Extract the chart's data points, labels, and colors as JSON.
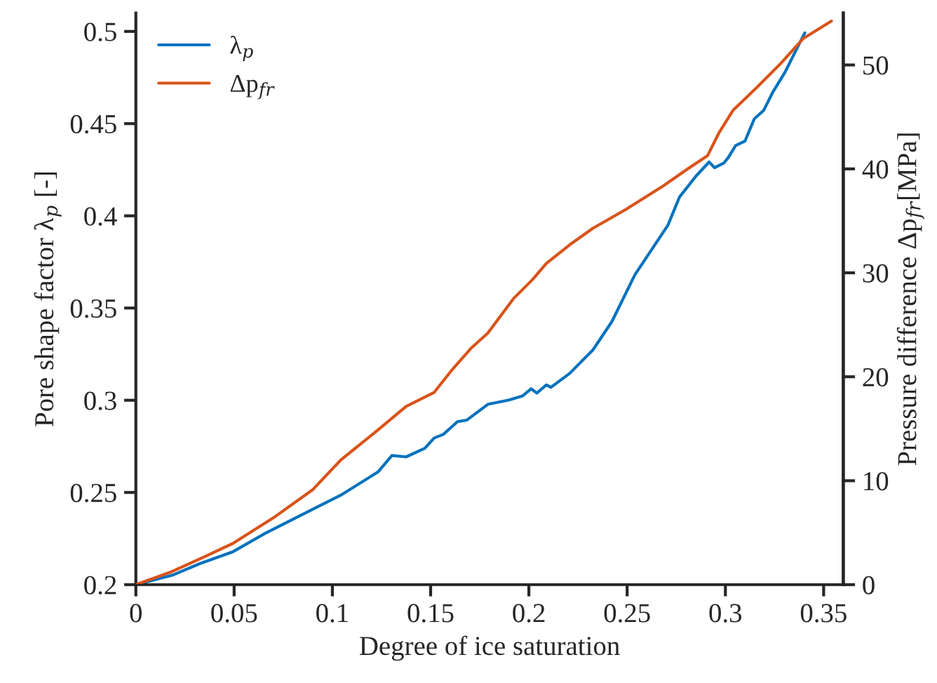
{
  "chart_data": {
    "type": "line",
    "xlabel": "Degree of ice saturation",
    "ylabel": "Pore shape factor λ$_{p}$ [-]",
    "y2label": "Pressure difference Δp$_{fr}$[MPa]",
    "xlim": [
      0,
      0.36
    ],
    "xticks": [
      0,
      0.05,
      0.1,
      0.15,
      0.2,
      0.25,
      0.3,
      0.35
    ],
    "ylim": [
      0.2,
      0.51
    ],
    "yticks": [
      0.2,
      0.25,
      0.3,
      0.35,
      0.4,
      0.45,
      0.5
    ],
    "y2lim": [
      0,
      55
    ],
    "y2ticks": [
      0,
      10,
      20,
      30,
      40,
      50
    ],
    "grid": false,
    "legend": "top left",
    "line_style": "solid",
    "marker": "none",
    "series": [
      {
        "name": "λ$_{p}$",
        "color": "#0072bd",
        "x": [
          0,
          0.0185,
          0.0328,
          0.0495,
          0.0661,
          0.0899,
          0.1041,
          0.1232,
          0.1303,
          0.1375,
          0.147,
          0.1518,
          0.1565,
          0.1637,
          0.1684,
          0.1791,
          0.1898,
          0.1969,
          0.2012,
          0.2041,
          0.2089,
          0.2112,
          0.2208,
          0.2326,
          0.2422,
          0.254,
          0.2707,
          0.2766,
          0.285,
          0.2917,
          0.2945,
          0.2993,
          0.3016,
          0.3052,
          0.31,
          0.3147,
          0.3195,
          0.3243,
          0.3302,
          0.335,
          0.3404
        ],
        "values": [
          0.2,
          0.2051,
          0.2115,
          0.2179,
          0.228,
          0.2408,
          0.2484,
          0.2611,
          0.27,
          0.2693,
          0.2739,
          0.2795,
          0.2815,
          0.2884,
          0.2892,
          0.2978,
          0.3001,
          0.3024,
          0.3062,
          0.3039,
          0.3083,
          0.307,
          0.3146,
          0.3273,
          0.3426,
          0.3681,
          0.3948,
          0.4101,
          0.4215,
          0.4292,
          0.4261,
          0.4287,
          0.4318,
          0.4381,
          0.4406,
          0.4526,
          0.4572,
          0.4674,
          0.4776,
          0.4878,
          0.4992
        ]
      },
      {
        "name": "Δp$_{fr}$",
        "color": "#d95319",
        "axis": "y2",
        "x": [
          0,
          0.0185,
          0.0352,
          0.0495,
          0.0709,
          0.0899,
          0.1041,
          0.1232,
          0.1375,
          0.1518,
          0.1613,
          0.1708,
          0.1791,
          0.1922,
          0.2017,
          0.2089,
          0.2208,
          0.2326,
          0.2493,
          0.2683,
          0.2802,
          0.2909,
          0.2969,
          0.304,
          0.3159,
          0.3278,
          0.3397,
          0.354
        ],
        "values": [
          0,
          1.27,
          2.71,
          3.98,
          6.55,
          9.12,
          11.96,
          14.89,
          17.14,
          18.5,
          20.76,
          22.79,
          24.2,
          27.52,
          29.32,
          30.91,
          32.7,
          34.29,
          36.09,
          38.35,
          39.92,
          41.27,
          43.53,
          45.66,
          47.82,
          50.07,
          52.56,
          54.22
        ]
      }
    ]
  }
}
